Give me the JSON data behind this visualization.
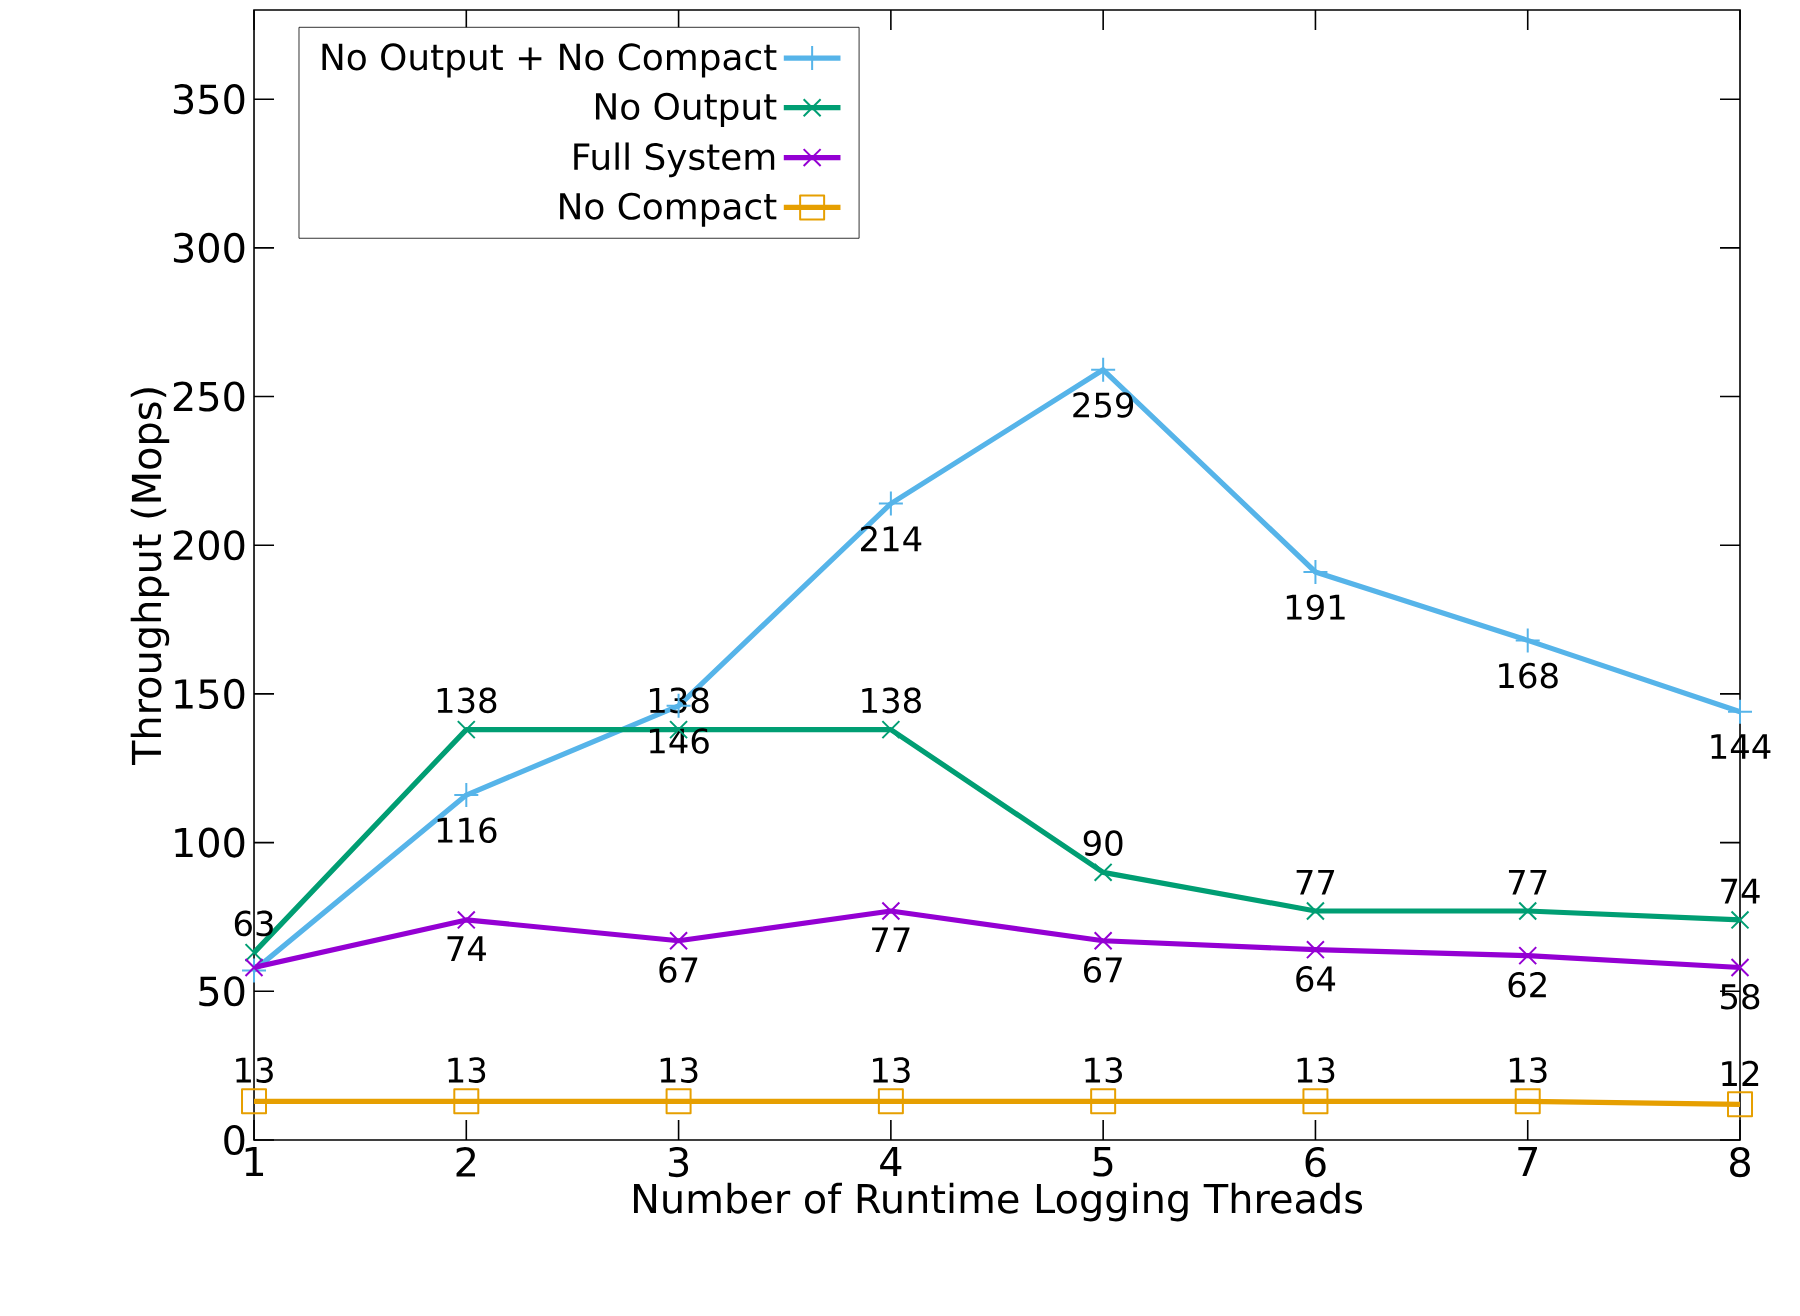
{
  "chart_data": {
    "type": "line",
    "xlabel": "Number of Runtime Logging Threads",
    "ylabel": "Throughput (Mops)",
    "x": [
      1,
      2,
      3,
      4,
      5,
      6,
      7,
      8
    ],
    "xlim": [
      1,
      8
    ],
    "xticks": [
      1,
      2,
      3,
      4,
      5,
      6,
      7,
      8
    ],
    "ylim": [
      0,
      380
    ],
    "yticks": [
      0,
      50,
      100,
      150,
      200,
      250,
      300,
      350
    ],
    "grid": false,
    "legend": "top left",
    "line_style": "solid",
    "series": [
      {
        "name": "No Output + No Compact",
        "color": "#56b4e9",
        "marker": "plus",
        "values": [
          57,
          116,
          146,
          214,
          259,
          191,
          168,
          144
        ],
        "value_labels": [
          null,
          "116",
          "146",
          "214",
          "259",
          "191",
          "168",
          "144"
        ]
      },
      {
        "name": "No Output",
        "color": "#009e73",
        "marker": "cross",
        "values": [
          63,
          138,
          138,
          138,
          90,
          77,
          77,
          74
        ],
        "value_labels": [
          "63",
          "138",
          "138",
          "138",
          "90",
          "77",
          "77",
          "74"
        ]
      },
      {
        "name": "Full System",
        "color": "#9400d3",
        "marker": "cross",
        "values": [
          58,
          74,
          67,
          77,
          67,
          64,
          62,
          58
        ],
        "value_labels": [
          null,
          "74",
          "67",
          "77",
          "67",
          "64",
          "62",
          "58"
        ]
      },
      {
        "name": "No Compact",
        "color": "#e69f00",
        "marker": "square",
        "values": [
          13,
          13,
          13,
          13,
          13,
          13,
          13,
          12
        ],
        "value_labels": [
          "13",
          "13",
          "13",
          "13",
          "13",
          "13",
          "13",
          "12"
        ]
      }
    ]
  }
}
